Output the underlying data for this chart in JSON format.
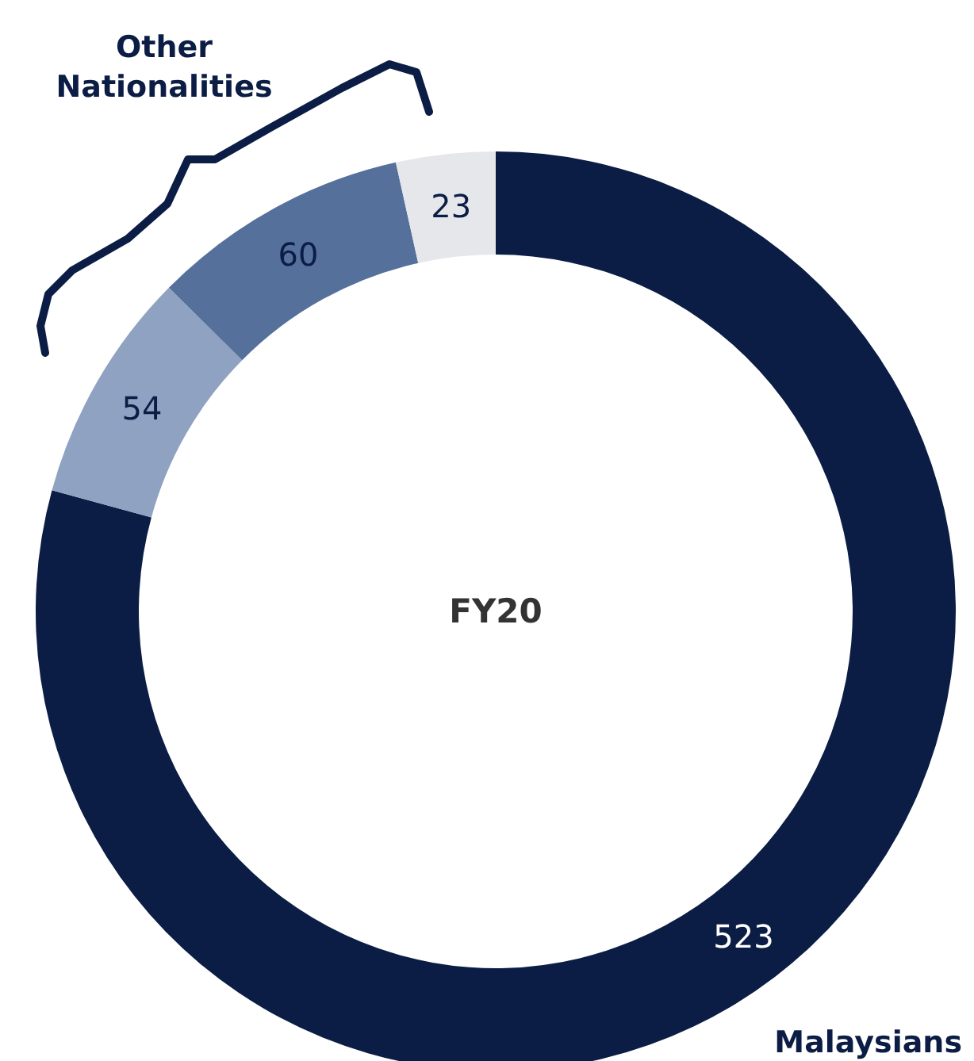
{
  "chart_data": {
    "type": "donut",
    "title": "FY20",
    "categories": [
      "Malaysians",
      null,
      null,
      null
    ],
    "values": [
      523,
      54,
      60,
      23
    ],
    "colors": [
      "#0b1d45",
      "#8fa2c2",
      "#55719b",
      "#e6e7ea"
    ],
    "data_labels": true,
    "annotations": [
      "Other Nationalities"
    ]
  }
}
